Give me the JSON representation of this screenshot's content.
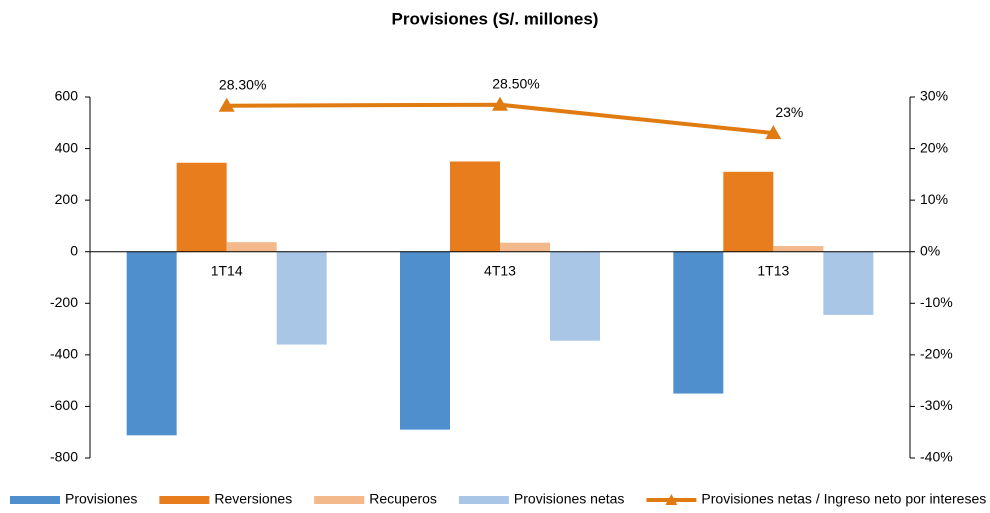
{
  "chart_data": {
    "type": "bar",
    "title": "Provisiones (S/. millones)",
    "categories": [
      "1T14",
      "4T13",
      "1T13"
    ],
    "series": [
      {
        "name": "Provisiones",
        "color": "#4f8fce",
        "values": [
          -712,
          -690,
          -550
        ]
      },
      {
        "name": "Reversiones",
        "color": "#e87d1e",
        "values": [
          345,
          350,
          310
        ]
      },
      {
        "name": "Recuperos",
        "color": "#f4b98a",
        "values": [
          37,
          35,
          22
        ]
      },
      {
        "name": "Provisiones netas",
        "color": "#a9c6e6",
        "values": [
          -360,
          -345,
          -245
        ]
      },
      {
        "name": "Provisiones netas / Ingreso neto por intereses",
        "color": "#e07b12",
        "type": "line",
        "axis": "y2",
        "values": [
          28.3,
          28.5,
          23
        ],
        "value_labels": [
          "28.30%",
          "28.50%",
          "23%"
        ]
      }
    ],
    "ylim": [
      -800,
      600
    ],
    "yticks": [
      -800,
      -600,
      -400,
      -200,
      0,
      200,
      400,
      600
    ],
    "y2lim": [
      -40,
      30
    ],
    "y2ticks": [
      {
        "value": -40,
        "label": "-40%"
      },
      {
        "value": -30,
        "label": "-30%"
      },
      {
        "value": -20,
        "label": "-20%"
      },
      {
        "value": -10,
        "label": "-10%"
      },
      {
        "value": 0,
        "label": "0%"
      },
      {
        "value": 10,
        "label": "10%"
      },
      {
        "value": 20,
        "label": "20%"
      },
      {
        "value": 30,
        "label": "30%"
      }
    ],
    "legend": "bottom"
  }
}
